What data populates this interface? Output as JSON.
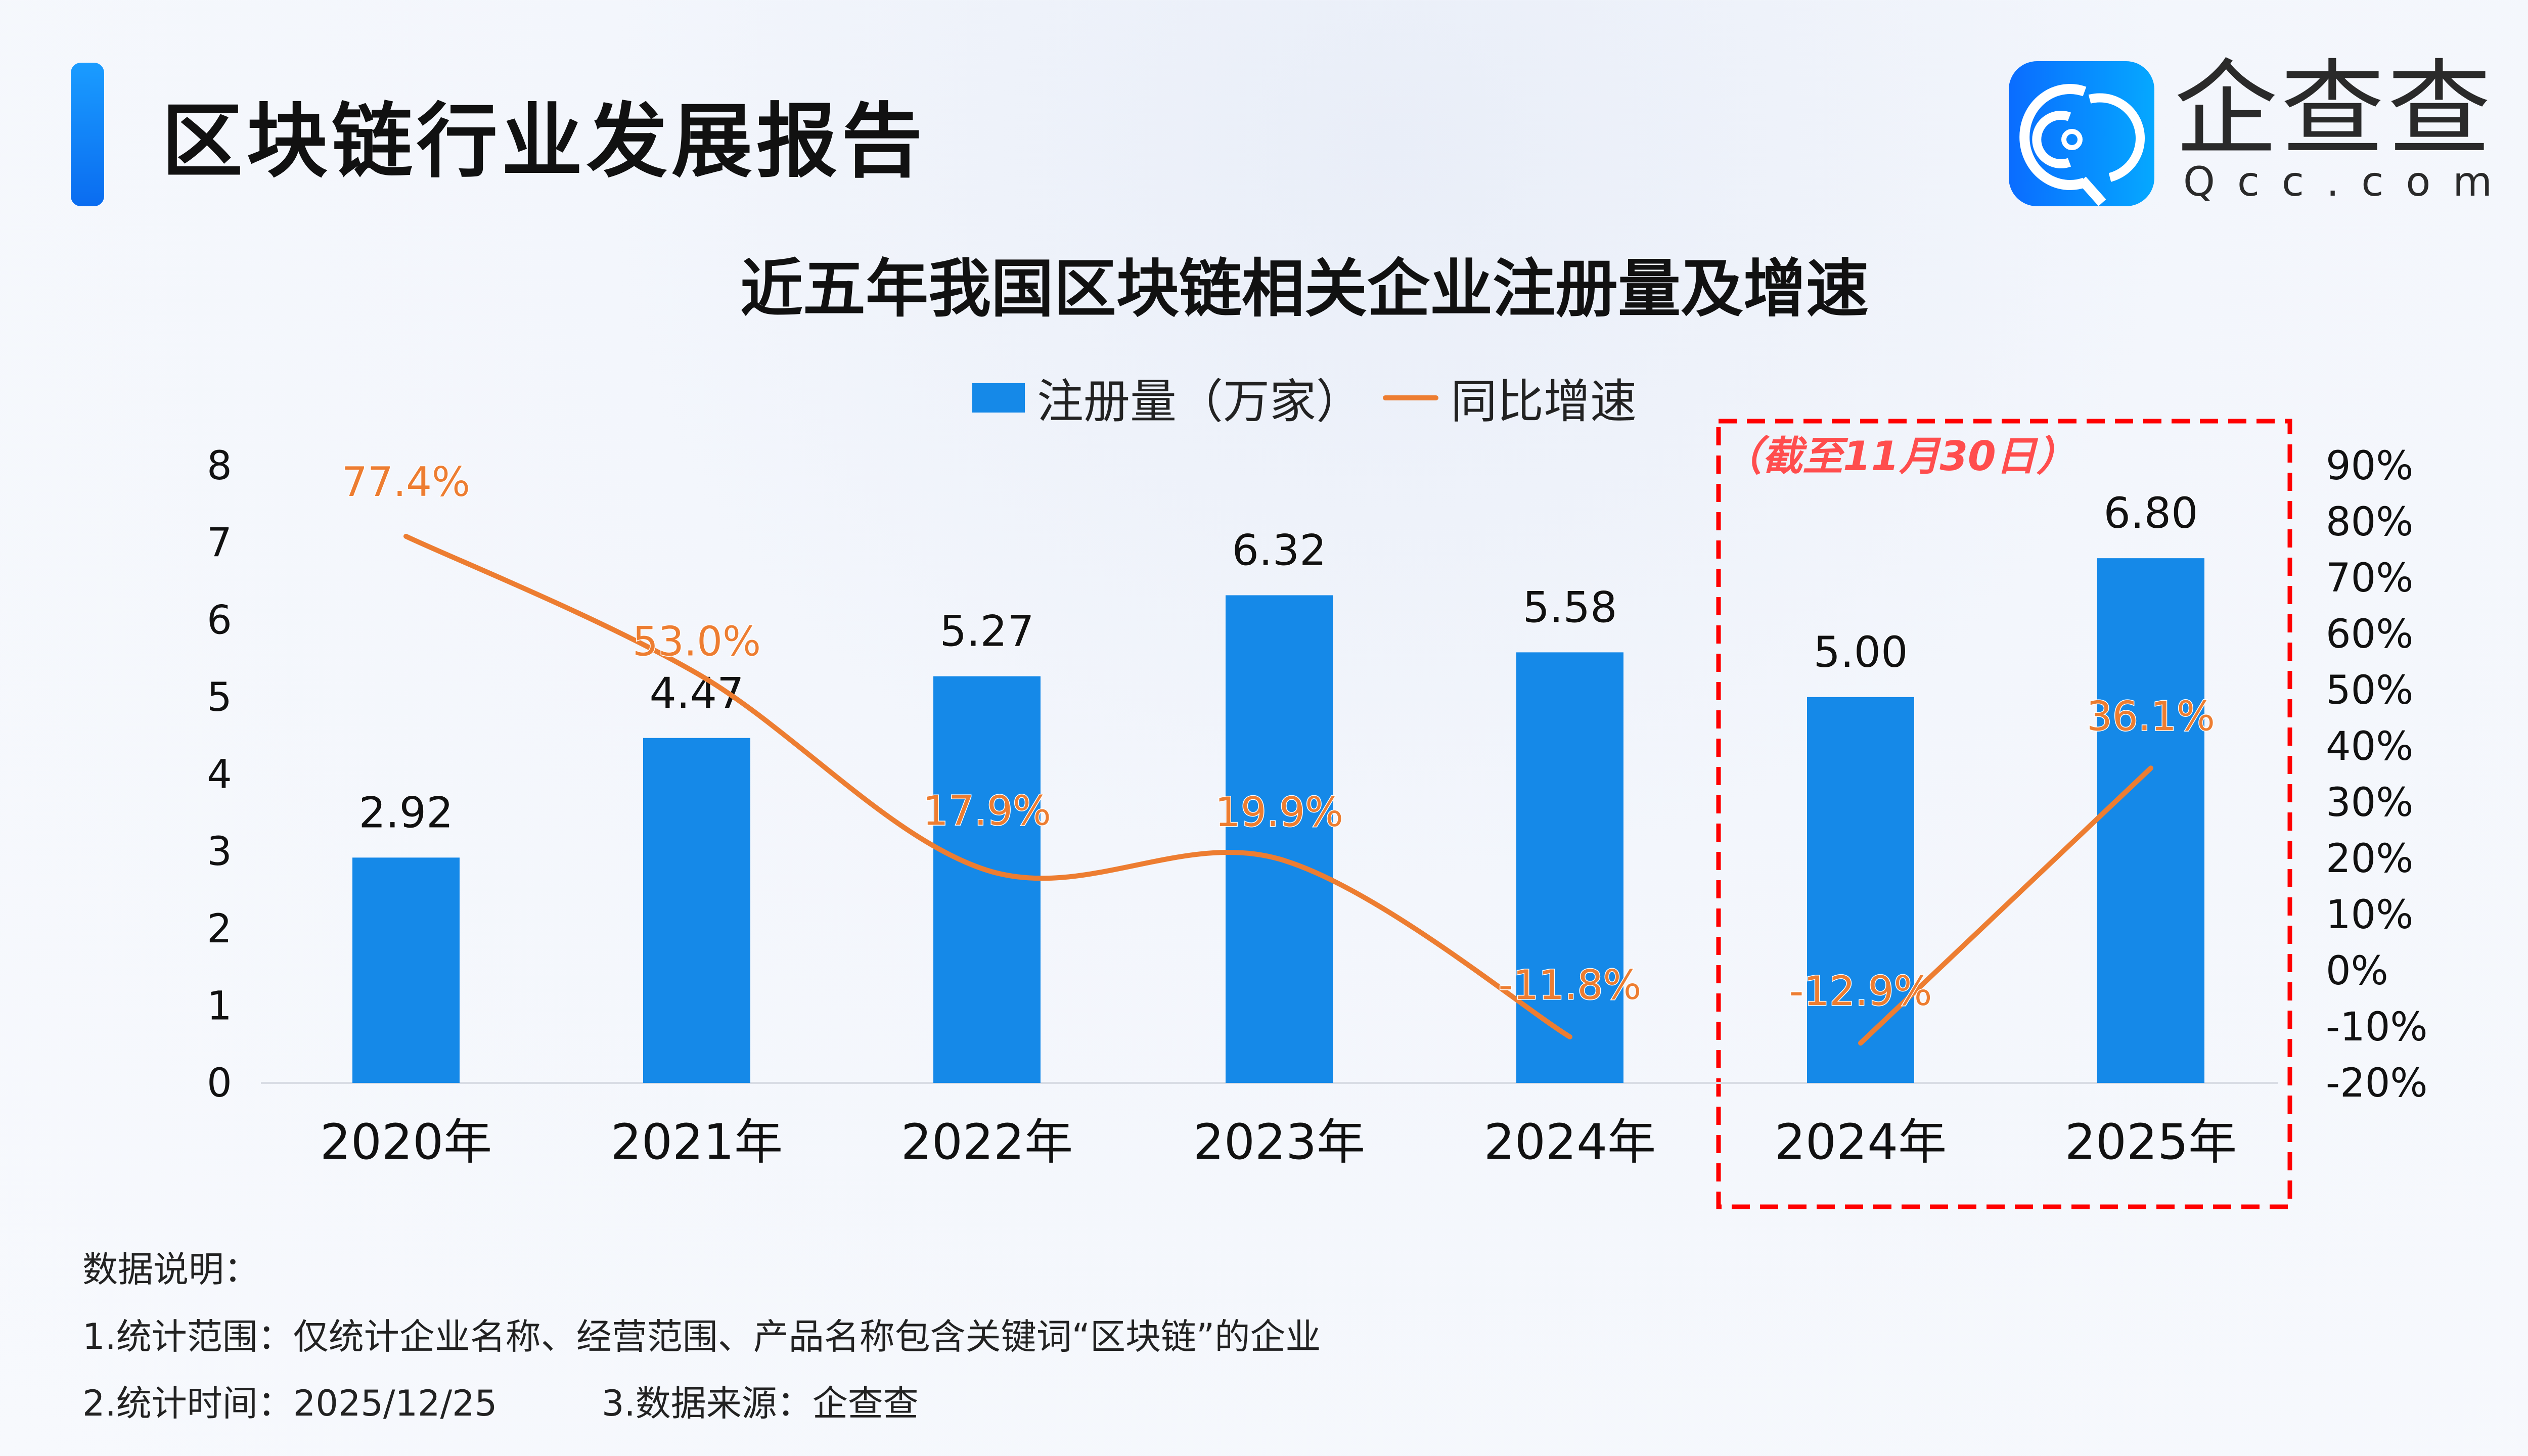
{
  "header": {
    "title": "区块链行业发展报告",
    "logo_text_cn": "企查查",
    "logo_text_en": "Qcc.com"
  },
  "colors": {
    "bar": "#1589e8",
    "line": "#ed7d31",
    "highlight_box": "#ff0000",
    "note": "#ff4d4d",
    "accent": "#0a84f5"
  },
  "chart_data": {
    "type": "bar",
    "title": "近五年我国区块链相关企业注册量及增速",
    "categories": [
      "2020年",
      "2021年",
      "2022年",
      "2023年",
      "2024年",
      "2024年",
      "2025年"
    ],
    "series": [
      {
        "name": "注册量（万家）",
        "type": "bar",
        "axis": "left",
        "values": [
          2.92,
          4.47,
          5.27,
          6.32,
          5.58,
          5.0,
          6.8
        ],
        "labels": [
          "2.92",
          "4.47",
          "5.27",
          "6.32",
          "5.58",
          "5.00",
          "6.80"
        ]
      },
      {
        "name": "同比增速",
        "type": "line",
        "axis": "right",
        "values": [
          77.4,
          53.0,
          17.9,
          19.9,
          -11.8,
          -12.9,
          36.1
        ],
        "labels": [
          "77.4%",
          "53.0%",
          "17.9%",
          "19.9%",
          "-11.8%",
          "-12.9%",
          "36.1%"
        ]
      }
    ],
    "left_axis": {
      "ylim": [
        0,
        8
      ],
      "ticks": [
        "0",
        "1",
        "2",
        "3",
        "4",
        "5",
        "6",
        "7",
        "8"
      ]
    },
    "right_axis": {
      "ylim": [
        -20,
        90
      ],
      "ticks": [
        "-20%",
        "-10%",
        "0%",
        "10%",
        "20%",
        "30%",
        "40%",
        "50%",
        "60%",
        "70%",
        "80%",
        "90%"
      ]
    },
    "legend_position": "top-center",
    "grid": false,
    "highlight": {
      "note": "（截至11月30日）",
      "categories_index": [
        5,
        6
      ]
    }
  },
  "footnotes": {
    "heading": "数据说明：",
    "line1": "1.统计范围：仅统计企业名称、经营范围、产品名称包含关键词“区块链”的企业",
    "line2a": "2.统计时间：2025/12/25",
    "line2b": "3.数据来源：企查查"
  }
}
